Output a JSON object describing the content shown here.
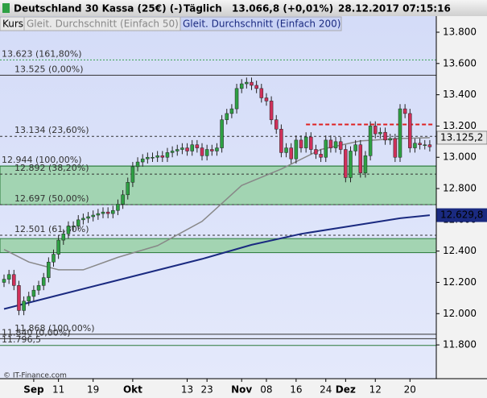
{
  "chart_data": {
    "type": "candlestick",
    "title": "Deutschland 30 Kassa (25€) (-)",
    "period": "Täglich",
    "last_price": "13.066,8 (+0,01%)",
    "timestamp": "28.12.2017 07:15:16",
    "footer": "© IT-Finance.com",
    "tabs": [
      "Kurs",
      "Gleit. Durchschnitt (Einfach 50)",
      "Gleit. Durchschnitt (Einfach 200)"
    ],
    "categories": [
      null,
      null,
      null,
      null,
      null,
      null,
      "Sep",
      null,
      null,
      null,
      null,
      "11",
      null,
      null,
      null,
      null,
      null,
      null,
      "19",
      null,
      null,
      null,
      null,
      null,
      null,
      null,
      "Okt",
      null,
      null,
      null,
      null,
      null,
      null,
      null,
      null,
      null,
      null,
      "13",
      null,
      null,
      null,
      "23",
      null,
      null,
      null,
      null,
      null,
      null,
      "Nov",
      null,
      null,
      null,
      null,
      "08",
      null,
      null,
      null,
      null,
      null,
      "16",
      null,
      null,
      null,
      null,
      null,
      "24",
      null,
      null,
      null,
      "Dez",
      null,
      null,
      null,
      null,
      null,
      "12",
      null,
      null,
      null,
      null,
      null,
      null,
      "20",
      null,
      null,
      null,
      null
    ],
    "open": [
      12200,
      12220,
      12250,
      12180,
      12020,
      12080,
      12110,
      12150,
      12180,
      12230,
      12330,
      12380,
      12470,
      12510,
      12560,
      12560,
      12600,
      12610,
      12620,
      12630,
      12640,
      12650,
      12640,
      12660,
      12700,
      12760,
      12840,
      12940,
      12970,
      12990,
      13000,
      13000,
      13010,
      13000,
      13030,
      13040,
      13050,
      13060,
      13040,
      13080,
      13060,
      13010,
      13050,
      13040,
      13060,
      13240,
      13280,
      13310,
      13440,
      13470,
      13480,
      13460,
      13440,
      13380,
      13360,
      13240,
      13180,
      13030,
      13060,
      12990,
      13110,
      13060,
      13130,
      13050,
      13020,
      13000,
      13110,
      13060,
      13100,
      13050,
      12870,
      13040,
      13080,
      12900,
      13010,
      13200,
      13150,
      13160,
      13110,
      13120,
      13000,
      13310,
      13280,
      13060,
      13090,
      13080,
      13080
    ],
    "high": [
      12250,
      12280,
      12280,
      12210,
      12110,
      12140,
      12180,
      12210,
      12260,
      12360,
      12410,
      12500,
      12540,
      12590,
      12590,
      12630,
      12640,
      12650,
      12660,
      12670,
      12680,
      12680,
      12690,
      12730,
      12790,
      12870,
      12970,
      13000,
      13020,
      13030,
      13030,
      13040,
      13040,
      13060,
      13070,
      13080,
      13090,
      13090,
      13110,
      13110,
      13090,
      13080,
      13080,
      13090,
      13270,
      13310,
      13340,
      13470,
      13500,
      13510,
      13510,
      13490,
      13470,
      13410,
      13390,
      13270,
      13210,
      13090,
      13090,
      13140,
      13140,
      13160,
      13160,
      13080,
      13050,
      13140,
      13140,
      13130,
      13130,
      13080,
      13070,
      13110,
      13110,
      13040,
      13230,
      13230,
      13190,
      13190,
      13150,
      13150,
      13340,
      13340,
      13310,
      13120,
      13120,
      13110,
      13110
    ],
    "low": [
      12170,
      12190,
      12150,
      11990,
      11990,
      12050,
      12080,
      12120,
      12150,
      12200,
      12300,
      12350,
      12440,
      12480,
      12530,
      12530,
      12570,
      12580,
      12590,
      12600,
      12610,
      12610,
      12610,
      12630,
      12670,
      12730,
      12810,
      12910,
      12940,
      12960,
      12970,
      12970,
      12970,
      12970,
      13000,
      13010,
      13020,
      13010,
      13010,
      13030,
      12980,
      12980,
      13010,
      13010,
      13030,
      13210,
      13250,
      13280,
      13410,
      13440,
      13430,
      13410,
      13350,
      13330,
      13210,
      13150,
      13000,
      13000,
      12960,
      12960,
      13030,
      13030,
      13020,
      12990,
      12970,
      12970,
      13030,
      13030,
      13020,
      12840,
      12840,
      13010,
      12870,
      12870,
      12980,
      13120,
      13120,
      13080,
      13080,
      12970,
      12970,
      13250,
      13030,
      13030,
      13050,
      13050,
      13037
    ],
    "close": [
      12220,
      12250,
      12180,
      12020,
      12080,
      12110,
      12150,
      12180,
      12230,
      12330,
      12380,
      12470,
      12510,
      12560,
      12560,
      12600,
      12610,
      12620,
      12630,
      12640,
      12650,
      12640,
      12660,
      12700,
      12760,
      12840,
      12940,
      12970,
      12990,
      13000,
      13000,
      13010,
      13000,
      13030,
      13040,
      13050,
      13060,
      13040,
      13080,
      13060,
      13010,
      13050,
      13040,
      13060,
      13240,
      13280,
      13310,
      13440,
      13470,
      13480,
      13460,
      13440,
      13380,
      13360,
      13240,
      13180,
      13030,
      13060,
      12990,
      13110,
      13060,
      13130,
      13050,
      13020,
      13000,
      13110,
      13060,
      13100,
      13050,
      12870,
      13040,
      13080,
      12900,
      13010,
      13200,
      13150,
      13160,
      13110,
      13120,
      13000,
      13310,
      13280,
      13060,
      13090,
      13080,
      13080,
      13067
    ],
    "up_color": "#2ea043",
    "down_color": "#d0305a",
    "series": [
      {
        "name": "Gleit. Durchschnitt (Einfach 50)",
        "color": "#888888",
        "x": [
          0,
          5,
          11,
          16,
          23,
          31,
          40,
          48,
          56,
          64,
          72,
          80,
          86
        ],
        "values": [
          12410,
          12330,
          12280,
          12280,
          12360,
          12435,
          12590,
          12820,
          12925,
          13050,
          13105,
          13120,
          13125.2
        ],
        "last_label": "13.125,2"
      },
      {
        "name": "Gleit. Durchschnitt (Einfach 200)",
        "color": "#1a2a80",
        "x": [
          0,
          10,
          20,
          30,
          40,
          50,
          60,
          70,
          80,
          86
        ],
        "values": [
          12030,
          12110,
          12190,
          12270,
          12350,
          12440,
          12510,
          12560,
          12610,
          12629.8
        ],
        "last_label": "12.629,8"
      }
    ],
    "levels": [
      {
        "value": 13623,
        "label": "13.623 (161,80%)",
        "color": "#3aa050",
        "dash": "2,2"
      },
      {
        "value": 13525,
        "label": "13.525 (0,00%)",
        "color": "#333333",
        "dash": ""
      },
      {
        "value": 13134,
        "label": "13.134 (23,60%)",
        "color": "#333333",
        "dash": "3,3"
      },
      {
        "value": 12944,
        "label": "12.944 (100,00%)",
        "color": "#2a7a3a",
        "dash": ""
      },
      {
        "value": 12892,
        "label": "12.892 (38,20%)",
        "color": "#333333",
        "dash": "3,3"
      },
      {
        "value": 12697,
        "label": "12.697 (50,00%)",
        "color": "#333333",
        "dash": "3,3"
      },
      {
        "value": 12501,
        "label": "12.501 (61,80%)",
        "color": "#333333",
        "dash": "3,3"
      },
      {
        "value": 11868,
        "label": "11.868 (100,00%)",
        "color": "#333333",
        "dash": ""
      },
      {
        "value": 11840,
        "label": "11.840 (0,00%)",
        "color": "#333333",
        "dash": ""
      },
      {
        "value": 11796.5,
        "label": "11.796,5",
        "color": "#2a7a3a",
        "dash": ""
      }
    ],
    "zones": [
      [
        12944,
        12697
      ],
      [
        12480,
        12390
      ]
    ],
    "zone_color": "#8fcf9a",
    "resistance": {
      "value": 13210,
      "start": 61,
      "color": "#e02020"
    },
    "ylim": [
      11584,
      13903
    ],
    "yticks": [
      {
        "value": 11800,
        "label": "11.800"
      },
      {
        "value": 12000,
        "label": "12.000"
      },
      {
        "value": 12200,
        "label": "12.200"
      },
      {
        "value": 12400,
        "label": "12.400"
      },
      {
        "value": 12600,
        "label": "12.600"
      },
      {
        "value": 12800,
        "label": "12.800"
      },
      {
        "value": 13000,
        "label": "13.000"
      },
      {
        "value": 13200,
        "label": "13.200"
      },
      {
        "value": 13400,
        "label": "13.400"
      },
      {
        "value": 13600,
        "label": "13.600"
      },
      {
        "value": 13800,
        "label": "13.800"
      }
    ]
  }
}
